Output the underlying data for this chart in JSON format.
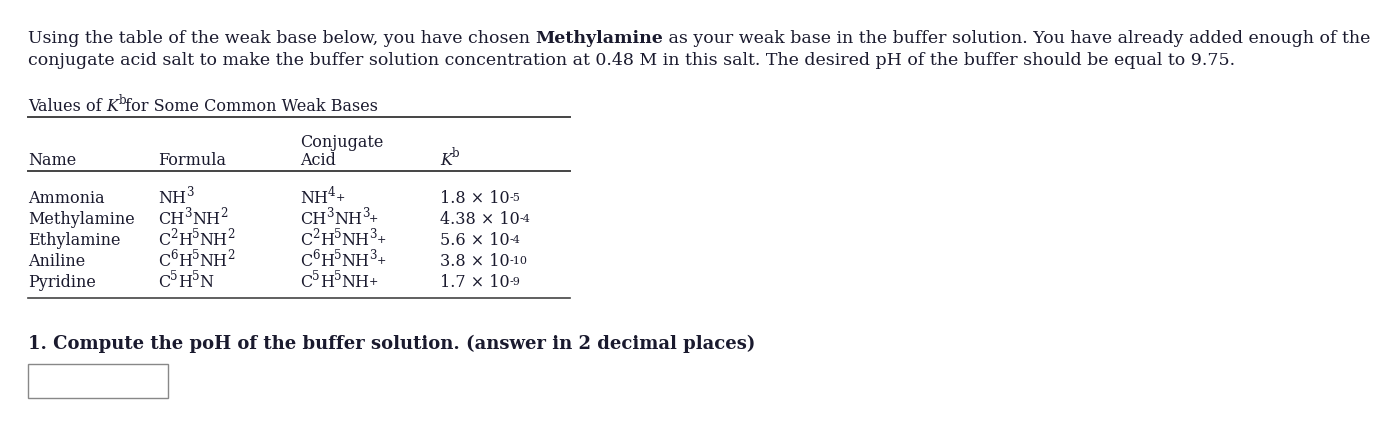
{
  "intro_line1_pre": "Using the table of the weak base below, you have chosen ",
  "intro_bold": "Methylamine",
  "intro_line1_post": " as your weak base in the buffer solution. You have already added enough of the",
  "intro_line2": "conjugate acid salt to make the buffer solution concentration at 0.48 M in this salt. The desired pH of the buffer should be equal to 9.75.",
  "table_title_pre": "Values of ",
  "table_title_mid": "K",
  "table_title_sub": "b",
  "table_title_post": " for Some Common Weak Bases",
  "header_col1": "Name",
  "header_col2": "Formula",
  "header_col3_top": "Conjugate",
  "header_col3_bot": "Acid",
  "header_col4": "K",
  "header_col4_sub": "b",
  "names": [
    "Ammonia",
    "Methylamine",
    "Ethylamine",
    "Aniline",
    "Pyridine"
  ],
  "formulas": [
    [
      "NH",
      "3",
      ""
    ],
    [
      "CH",
      "3",
      "NH",
      "2",
      ""
    ],
    [
      "C",
      "2",
      "H",
      "5",
      "NH",
      "2",
      ""
    ],
    [
      "C",
      "6",
      "H",
      "5",
      "NH",
      "2",
      ""
    ],
    [
      "C",
      "5",
      "H",
      "5",
      "N"
    ]
  ],
  "conj_acids": [
    [
      "NH",
      "4",
      "+"
    ],
    [
      "CH",
      "3",
      "NH",
      "3",
      "+"
    ],
    [
      "C",
      "2",
      "H",
      "5",
      "NH",
      "3",
      "+"
    ],
    [
      "C",
      "6",
      "H",
      "5",
      "NH",
      "3",
      "+"
    ],
    [
      "C",
      "5",
      "H",
      "5",
      "NH",
      "+"
    ]
  ],
  "kb_values": [
    "1.8 × 10",
    "4.38 × 10",
    "5.6 × 10",
    "3.8 × 10",
    "1.7 × 10"
  ],
  "kb_exponents": [
    "-5",
    "-4",
    "-4",
    "-10",
    "-9"
  ],
  "question_pre": "1. Compute the poH of the buffer solution. (answer in 2 decimal places)",
  "bg_color": "#ffffff",
  "text_color": "#1a1a2e",
  "line_color": "#444444",
  "fs_intro": 12.5,
  "fs_title": 11.5,
  "fs_table": 11.5,
  "fs_question": 13.0
}
